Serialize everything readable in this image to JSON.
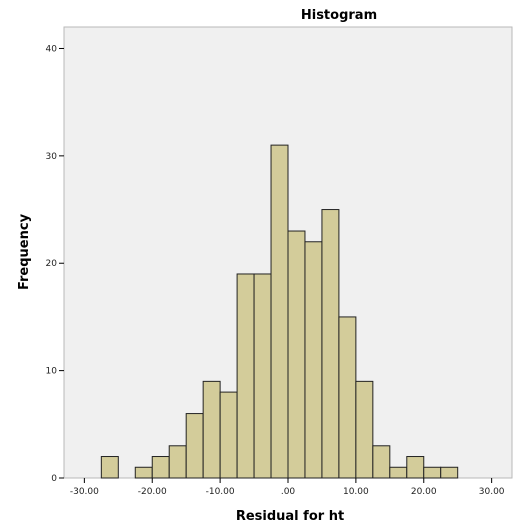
{
  "chart_data": {
    "type": "bar",
    "title": "Histogram",
    "xlabel": "Residual for ht",
    "ylabel": "Frequency",
    "xlim": [
      -33,
      33
    ],
    "ylim": [
      0,
      42
    ],
    "x_ticks": [
      -30,
      -20,
      -10,
      0,
      10,
      20,
      30
    ],
    "x_tick_labels": [
      "-30.00",
      "-20.00",
      "-10.00",
      ".00",
      "10.00",
      "20.00",
      "30.00"
    ],
    "y_ticks": [
      0,
      10,
      20,
      30,
      40
    ],
    "y_tick_labels": [
      "0",
      "10",
      "20",
      "30",
      "40"
    ],
    "bin_width": 2.5,
    "bins": [
      {
        "start": -27.5,
        "value": 2
      },
      {
        "start": -22.5,
        "value": 1
      },
      {
        "start": -20.0,
        "value": 2
      },
      {
        "start": -17.5,
        "value": 3
      },
      {
        "start": -15.0,
        "value": 6
      },
      {
        "start": -12.5,
        "value": 9
      },
      {
        "start": -10.0,
        "value": 8
      },
      {
        "start": -7.5,
        "value": 19
      },
      {
        "start": -5.0,
        "value": 19
      },
      {
        "start": -2.5,
        "value": 31
      },
      {
        "start": 0.0,
        "value": 23
      },
      {
        "start": 2.5,
        "value": 22
      },
      {
        "start": 5.0,
        "value": 25
      },
      {
        "start": 7.5,
        "value": 15
      },
      {
        "start": 10.0,
        "value": 9
      },
      {
        "start": 12.5,
        "value": 3
      },
      {
        "start": 15.0,
        "value": 1
      },
      {
        "start": 17.5,
        "value": 2
      },
      {
        "start": 20.0,
        "value": 1
      },
      {
        "start": 22.5,
        "value": 1
      }
    ],
    "grid": false,
    "colors": {
      "bar_fill": "#d3cc9a",
      "bar_stroke": "#222222",
      "plot_background": "#f0f0f0",
      "frame": "#b9b9b9"
    }
  }
}
